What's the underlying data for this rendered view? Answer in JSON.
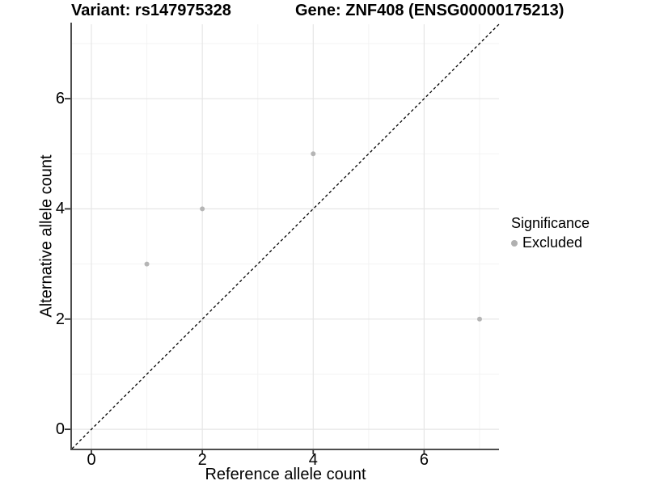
{
  "chart_data": {
    "type": "scatter",
    "title": {
      "left": "Variant: rs147975328",
      "right": "Gene: ZNF408 (ENSG00000175213)"
    },
    "xlabel": "Reference allele count",
    "ylabel": "Alternative allele count",
    "xlim": [
      -0.35,
      7.35
    ],
    "ylim": [
      -0.35,
      7.35
    ],
    "x_ticks": [
      0,
      2,
      4,
      6
    ],
    "y_ticks": [
      0,
      2,
      4,
      6
    ],
    "x_minor_ticks": [
      1,
      3,
      5,
      7
    ],
    "y_minor_ticks": [
      1,
      3,
      5,
      7
    ],
    "grid": "major+minor",
    "reference_line": {
      "type": "identity",
      "style": "dashed",
      "color": "#000000"
    },
    "series": [
      {
        "name": "Excluded",
        "color": "#b5b5b5",
        "points": [
          [
            1,
            3
          ],
          [
            2,
            4
          ],
          [
            4,
            5
          ],
          [
            7,
            2
          ]
        ]
      }
    ],
    "legend": {
      "title": "Significance",
      "position": "right",
      "entries": [
        {
          "label": "Excluded",
          "color": "#b0b0b0"
        }
      ]
    },
    "colors": {
      "background": "#ffffff",
      "major_grid": "#e6e6e6",
      "minor_grid": "#f3f3f3",
      "axis_line": "#4d4d4d",
      "tick": "#333333",
      "text": "#000000"
    }
  }
}
